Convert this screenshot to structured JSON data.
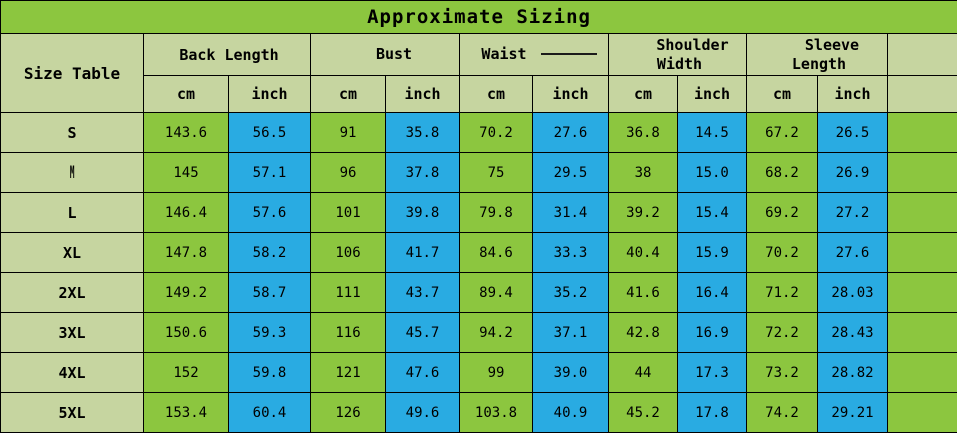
{
  "colors": {
    "title_bg": "#8CC63F",
    "green_cell": "#8CC63F",
    "blue_cell": "#29ABE2",
    "header_bg": "#C6D5A0",
    "border": "#000000",
    "text": "#000000"
  },
  "chart_data": {
    "type": "table",
    "title": "Approximate Sizing",
    "corner_label": "Size Table",
    "column_groups": [
      {
        "label": "Back Length",
        "lines": [
          "Back Length"
        ]
      },
      {
        "label": "Bust",
        "lines": [
          "Bust"
        ]
      },
      {
        "label": "Waist",
        "lines": [
          "Waist"
        ],
        "artifact_dash": true
      },
      {
        "label": "Shoulder Width",
        "lines": [
          "Shoulder",
          "Width"
        ]
      },
      {
        "label": "Sleeve Length",
        "lines": [
          "Sleeve",
          "Length"
        ]
      }
    ],
    "units": [
      "cm",
      "inch"
    ],
    "rows": [
      {
        "size": "S",
        "values": [
          "143.6",
          "56.5",
          "91",
          "35.8",
          "70.2",
          "27.6",
          "36.8",
          "14.5",
          "67.2",
          "26.5"
        ]
      },
      {
        "size": "M",
        "values": [
          "145",
          "57.1",
          "96",
          "37.8",
          "75",
          "29.5",
          "38",
          "15.0",
          "68.2",
          "26.9"
        ]
      },
      {
        "size": "L",
        "values": [
          "146.4",
          "57.6",
          "101",
          "39.8",
          "79.8",
          "31.4",
          "39.2",
          "15.4",
          "69.2",
          "27.2"
        ]
      },
      {
        "size": "XL",
        "values": [
          "147.8",
          "58.2",
          "106",
          "41.7",
          "84.6",
          "33.3",
          "40.4",
          "15.9",
          "70.2",
          "27.6"
        ]
      },
      {
        "size": "2XL",
        "values": [
          "149.2",
          "58.7",
          "111",
          "43.7",
          "89.4",
          "35.2",
          "41.6",
          "16.4",
          "71.2",
          "28.03"
        ]
      },
      {
        "size": "3XL",
        "values": [
          "150.6",
          "59.3",
          "116",
          "45.7",
          "94.2",
          "37.1",
          "42.8",
          "16.9",
          "72.2",
          "28.43"
        ]
      },
      {
        "size": "4XL",
        "values": [
          "152",
          "59.8",
          "121",
          "47.6",
          "99",
          "39.0",
          "44",
          "17.3",
          "73.2",
          "28.82"
        ]
      },
      {
        "size": "5XL",
        "values": [
          "153.4",
          "60.4",
          "126",
          "49.6",
          "103.8",
          "40.9",
          "45.2",
          "17.8",
          "74.2",
          "29.21"
        ]
      }
    ]
  }
}
